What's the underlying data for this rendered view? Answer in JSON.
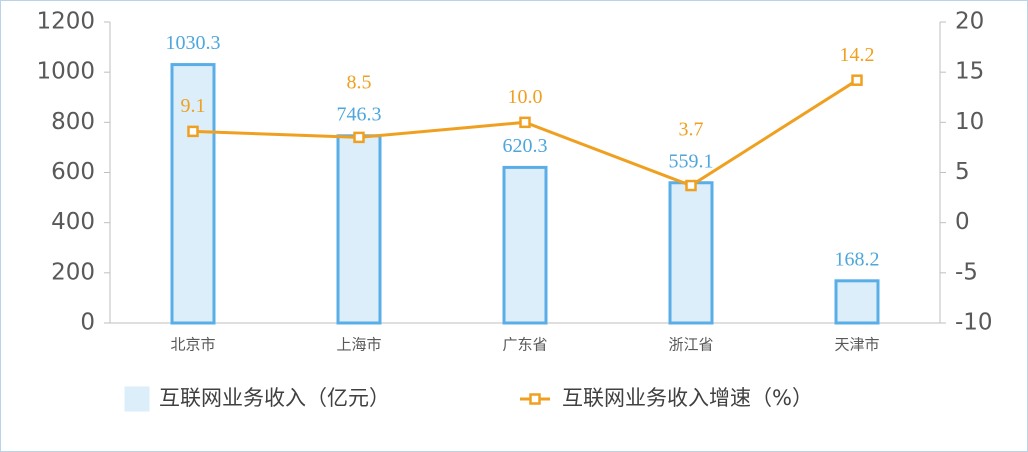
{
  "chart_data": {
    "type": "bar",
    "categories": [
      "北京市",
      "上海市",
      "广东省",
      "浙江省",
      "天津市"
    ],
    "series": [
      {
        "name": "互联网业务收入（亿元）",
        "type": "bar",
        "color": "#5aaee8",
        "fill": "#dbeef9",
        "label_color": "#4ea6dc",
        "values": [
          1030.3,
          746.3,
          620.3,
          559.1,
          168.2
        ]
      },
      {
        "name": "互联网业务收入增速（%）",
        "type": "line",
        "axis": "y2",
        "color": "#f0a020",
        "values": [
          9.1,
          8.5,
          10,
          3.7,
          14.2
        ],
        "value_labels": [
          "9.1",
          "8.5",
          "10.0",
          "3.7",
          "14.2"
        ]
      }
    ],
    "ylim": [
      0,
      1200
    ],
    "yticks": [
      0,
      200,
      400,
      600,
      800,
      1000,
      1200
    ],
    "y2lim": [
      -10,
      20
    ],
    "y2ticks": [
      -10,
      -5,
      0,
      5,
      10,
      15,
      20
    ],
    "legend": "bottom"
  }
}
